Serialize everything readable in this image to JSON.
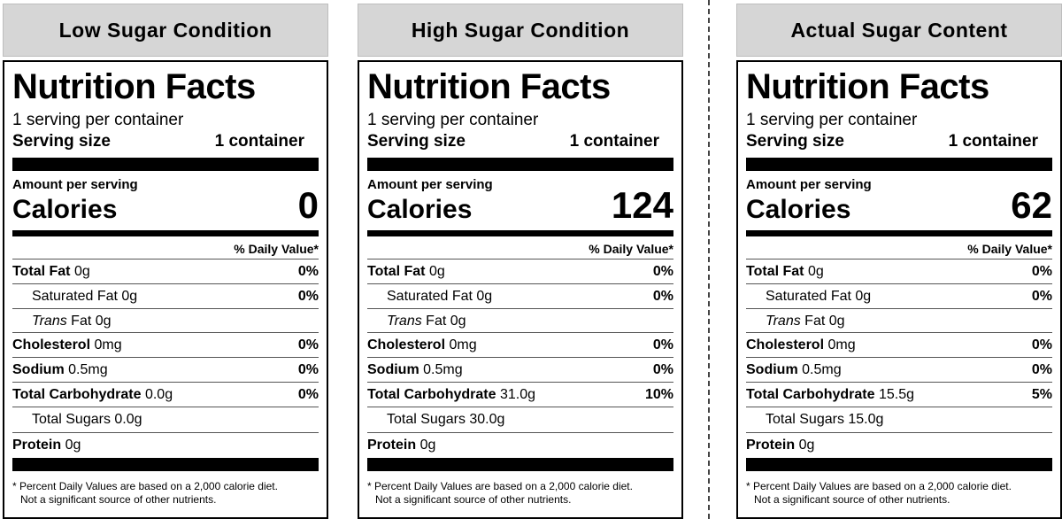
{
  "panels": [
    {
      "header": "Low Sugar Condition",
      "title": "Nutrition Facts",
      "servings": "1 serving per container",
      "serving_size_label": "Serving size",
      "serving_size_value": "1 container",
      "amount_per_serving": "Amount per serving",
      "calories_label": "Calories",
      "calories_value": "0",
      "daily_value_header": "% Daily Value*",
      "total_fat": "Total Fat",
      "total_fat_amt": "0g",
      "total_fat_pct": "0%",
      "sat_fat": "Saturated Fat 0g",
      "sat_fat_pct": "0%",
      "trans": "Trans",
      "trans_rest": "Fat 0g",
      "cholesterol": "Cholesterol",
      "cholesterol_amt": "0mg",
      "cholesterol_pct": "0%",
      "sodium": "Sodium",
      "sodium_amt": "0.5mg",
      "sodium_pct": "0%",
      "carb": "Total Carbohydrate",
      "carb_amt": "0.0g",
      "carb_pct": "0%",
      "sugars": "Total Sugars 0.0g",
      "protein": "Protein",
      "protein_amt": "0g",
      "footnote_1": "* Percent Daily Values are based on a 2,000 calorie diet.",
      "footnote_2": "Not a significant source of other nutrients."
    },
    {
      "header": "High Sugar Condition",
      "title": "Nutrition Facts",
      "servings": "1 serving per container",
      "serving_size_label": "Serving size",
      "serving_size_value": "1 container",
      "amount_per_serving": "Amount per serving",
      "calories_label": "Calories",
      "calories_value": "124",
      "daily_value_header": "% Daily Value*",
      "total_fat": "Total Fat",
      "total_fat_amt": "0g",
      "total_fat_pct": "0%",
      "sat_fat": "Saturated Fat 0g",
      "sat_fat_pct": "0%",
      "trans": "Trans",
      "trans_rest": "Fat 0g",
      "cholesterol": "Cholesterol",
      "cholesterol_amt": "0mg",
      "cholesterol_pct": "0%",
      "sodium": "Sodium",
      "sodium_amt": "0.5mg",
      "sodium_pct": "0%",
      "carb": "Total Carbohydrate",
      "carb_amt": "31.0g",
      "carb_pct": "10%",
      "sugars": "Total Sugars 30.0g",
      "protein": "Protein",
      "protein_amt": "0g",
      "footnote_1": "* Percent Daily Values are based on a 2,000 calorie diet.",
      "footnote_2": "Not a significant source of other nutrients."
    },
    {
      "header": "Actual Sugar Content",
      "title": "Nutrition Facts",
      "servings": "1 serving per container",
      "serving_size_label": "Serving size",
      "serving_size_value": "1 container",
      "amount_per_serving": "Amount per serving",
      "calories_label": "Calories",
      "calories_value": "62",
      "daily_value_header": "% Daily Value*",
      "total_fat": "Total Fat",
      "total_fat_amt": "0g",
      "total_fat_pct": "0%",
      "sat_fat": "Saturated Fat 0g",
      "sat_fat_pct": "0%",
      "trans": "Trans",
      "trans_rest": "Fat 0g",
      "cholesterol": "Cholesterol",
      "cholesterol_amt": "0mg",
      "cholesterol_pct": "0%",
      "sodium": "Sodium",
      "sodium_amt": "0.5mg",
      "sodium_pct": "0%",
      "carb": "Total Carbohydrate",
      "carb_amt": "15.5g",
      "carb_pct": "5%",
      "sugars": "Total Sugars 15.0g",
      "protein": "Protein",
      "protein_amt": "0g",
      "footnote_1": "* Percent Daily Values are based on a 2,000 calorie diet.",
      "footnote_2": "Not a significant source of other nutrients."
    }
  ]
}
